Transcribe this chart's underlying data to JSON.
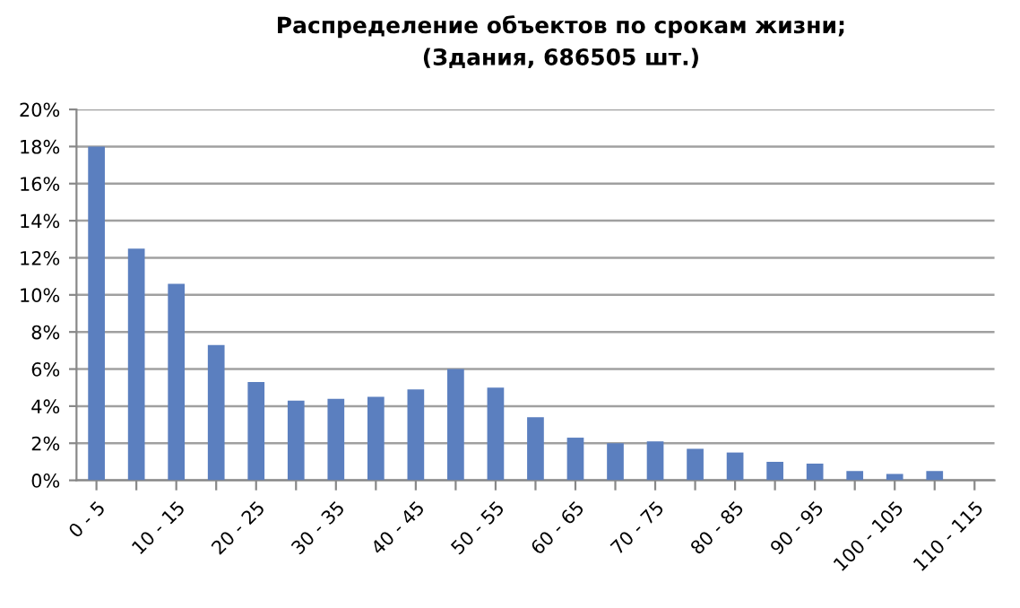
{
  "chart_data": {
    "type": "bar",
    "title": "Распределение объектов по срокам жизни;\n(Здания, 686505 шт.)",
    "categories": [
      "0 - 5",
      null,
      "10 - 15",
      null,
      "20 - 25",
      null,
      "30 - 35",
      null,
      "40 - 45",
      null,
      "50 - 55",
      null,
      "60 - 65",
      null,
      "70 - 75",
      null,
      "80 - 85",
      null,
      "90 - 95",
      null,
      "100 - 105",
      null,
      "110 - 115"
    ],
    "values": [
      18,
      12.5,
      10.6,
      7.3,
      5.3,
      4.3,
      4.4,
      4.5,
      4.9,
      6.0,
      5.0,
      3.4,
      2.3,
      2.0,
      2.1,
      1.7,
      1.5,
      1.0,
      0.9,
      0.5,
      0.35,
      0.5,
      0
    ],
    "color": "#5b7fbf",
    "ylim": [
      0,
      20
    ],
    "yticks": [
      {
        "value": 0,
        "label": "0%"
      },
      {
        "value": 2,
        "label": "2%"
      },
      {
        "value": 4,
        "label": "4%"
      },
      {
        "value": 6,
        "label": "6%"
      },
      {
        "value": 8,
        "label": "8%"
      },
      {
        "value": 10,
        "label": "10%"
      },
      {
        "value": 12,
        "label": "12%"
      },
      {
        "value": 14,
        "label": "14%"
      },
      {
        "value": 16,
        "label": "16%"
      },
      {
        "value": 18,
        "label": "18%"
      },
      {
        "value": 20,
        "label": "20%"
      }
    ],
    "grid": "y",
    "legend": false
  }
}
